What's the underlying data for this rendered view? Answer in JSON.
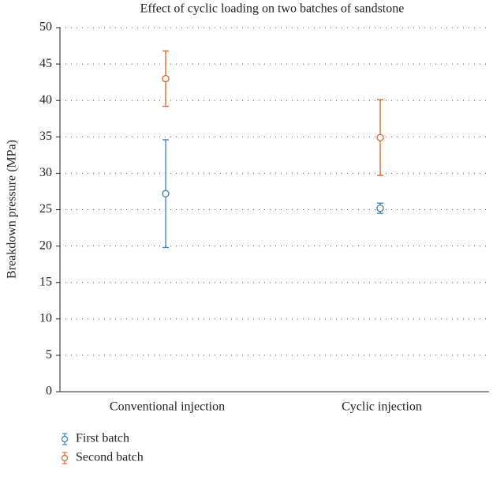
{
  "chart_data": {
    "type": "errorbar",
    "title": "Effect of cyclic loading on two batches of sandstone",
    "y_label": "Breakdown pressure (MPa)",
    "categories": [
      "Conventional injection",
      "Cyclic injection"
    ],
    "series": [
      {
        "name": "First batch",
        "color": "#3b7db3",
        "values": [
          27.2,
          25.2
        ],
        "errors": [
          7.4,
          0.7
        ]
      },
      {
        "name": "Second batch",
        "color": "#d9662b",
        "values": [
          43.0,
          34.9
        ],
        "errors": [
          3.8,
          5.2
        ]
      }
    ],
    "ylim": [
      0,
      50
    ],
    "yticks": [
      0,
      5,
      10,
      15,
      20,
      25,
      30,
      35,
      40,
      45,
      50
    ],
    "grid": true
  }
}
